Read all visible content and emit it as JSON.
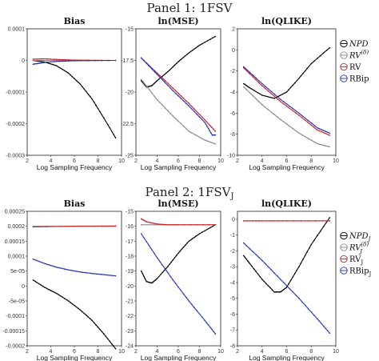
{
  "figure": {
    "panels": [
      {
        "title": "Panel 1: 1FSV"
      },
      {
        "title": "Panel 2: 1FSV",
        "title_sub": "J"
      }
    ]
  },
  "chart_data": [
    {
      "panel": 1,
      "type": "line",
      "title": "Bias",
      "xlabel": "Log Sampling Frequency",
      "xlim": [
        2,
        10
      ],
      "ylim": [
        -0.0003,
        0.0001
      ],
      "x_ticks": [
        2,
        4,
        6,
        8,
        10
      ],
      "y_ticks": [
        0.0001,
        0,
        -0.0001,
        -0.0002,
        -0.0003
      ],
      "y_tick_labels": [
        "0.0001",
        "0",
        "-0.0001",
        "-0.0002",
        "-0.0003"
      ],
      "series": [
        {
          "name": "NPD",
          "color": "#000000",
          "x": [
            2.5,
            3.5,
            4.5,
            5.5,
            6.5,
            7.5,
            8.5,
            9.5
          ],
          "y": [
            0,
            -5e-06,
            -1.7e-05,
            -4e-05,
            -7.5e-05,
            -0.000122,
            -0.000182,
            -0.000245
          ]
        },
        {
          "name": "RV(δ)",
          "color": "#888888",
          "x": [
            2.5,
            9.5
          ],
          "y": [
            0,
            0
          ]
        },
        {
          "name": "RV",
          "color": "#cc2222",
          "x": [
            2.5,
            3.5,
            4.5,
            6,
            9.5
          ],
          "y": [
            4e-06,
            5e-06,
            3e-06,
            1e-06,
            0
          ]
        },
        {
          "name": "RBip",
          "color": "#2233bb",
          "x": [
            2.5,
            3,
            3.5,
            4.5,
            6,
            9.5
          ],
          "y": [
            -1.2e-05,
            -9e-06,
            -6e-06,
            -3e-06,
            -1e-06,
            0
          ]
        }
      ]
    },
    {
      "panel": 1,
      "type": "line",
      "title": "ln(MSE)",
      "xlabel": "Log Sampling Frequency",
      "xlim": [
        2,
        10
      ],
      "ylim": [
        -25,
        -15
      ],
      "x_ticks": [
        2,
        4,
        6,
        8,
        10
      ],
      "y_ticks": [
        -15,
        -17.5,
        -20,
        -22.5,
        -25
      ],
      "y_tick_labels": [
        "-15",
        "-17.5",
        "-20",
        "-22.5",
        "-25"
      ],
      "series": [
        {
          "name": "NPD",
          "color": "#000000",
          "x": [
            2.5,
            3,
            3.5,
            4,
            5,
            6,
            7,
            8,
            9.5
          ],
          "y": [
            -19.1,
            -19.6,
            -19.5,
            -19.1,
            -18.4,
            -17.6,
            -16.9,
            -16.3,
            -15.6
          ]
        },
        {
          "name": "RV(δ)",
          "color": "#888888",
          "x": [
            2.5,
            4,
            5.5,
            7,
            8.5,
            9.5
          ],
          "y": [
            -19.0,
            -20.6,
            -21.9,
            -23.1,
            -23.8,
            -24.1
          ]
        },
        {
          "name": "RV",
          "color": "#cc2222",
          "x": [
            2.5,
            4,
            5.5,
            7,
            8.5,
            9.5
          ],
          "y": [
            -17.3,
            -18.5,
            -19.7,
            -20.9,
            -22.2,
            -23.1
          ]
        },
        {
          "name": "RBip",
          "color": "#2233bb",
          "x": [
            2.5,
            4,
            5.5,
            7,
            8.5,
            9.2,
            9.5
          ],
          "y": [
            -17.3,
            -18.6,
            -19.9,
            -21.1,
            -22.4,
            -23.4,
            -23.4
          ]
        }
      ]
    },
    {
      "panel": 1,
      "type": "line",
      "title": "ln(QLIKE)",
      "xlabel": "Log Sampling Frequency",
      "xlim": [
        2,
        10
      ],
      "ylim": [
        -10,
        2
      ],
      "x_ticks": [
        2,
        4,
        6,
        8,
        10
      ],
      "y_ticks": [
        2,
        0,
        -2,
        -4,
        -6,
        -8,
        -10
      ],
      "y_tick_labels": [
        "2",
        "0",
        "-2",
        "-4",
        "-6",
        "-8",
        "-10"
      ],
      "series": [
        {
          "name": "NPD",
          "color": "#000000",
          "x": [
            2.5,
            3,
            4,
            5,
            6,
            7,
            8,
            9.5
          ],
          "y": [
            -3.2,
            -3.6,
            -4.3,
            -4.6,
            -4.0,
            -2.7,
            -1.3,
            0.2
          ]
        },
        {
          "name": "RV(δ)",
          "color": "#888888",
          "x": [
            2.5,
            4,
            5.5,
            7,
            8.5,
            9.5
          ],
          "y": [
            -3.5,
            -5.2,
            -6.6,
            -7.9,
            -8.9,
            -9.2
          ]
        },
        {
          "name": "RV",
          "color": "#cc2222",
          "x": [
            2.5,
            4,
            5.5,
            7,
            8.5,
            9.5
          ],
          "y": [
            -1.7,
            -3.4,
            -4.9,
            -6.2,
            -7.6,
            -8.1
          ]
        },
        {
          "name": "RBip",
          "color": "#2233bb",
          "x": [
            2.5,
            4,
            5.5,
            7,
            8.5,
            9.5
          ],
          "y": [
            -1.6,
            -3.2,
            -4.7,
            -6.0,
            -7.4,
            -7.9
          ]
        }
      ]
    },
    {
      "panel": 2,
      "type": "line",
      "title": "Bias",
      "xlabel": "Log Sampling Frequency",
      "xlim": [
        2,
        10
      ],
      "ylim": [
        -0.0002,
        0.00025
      ],
      "x_ticks": [
        2,
        4,
        6,
        8,
        10
      ],
      "y_ticks": [
        0.00025,
        0.0002,
        0.00015,
        0.0001,
        5e-05,
        0,
        -5e-05,
        -0.0001,
        -0.00015,
        -0.0002
      ],
      "y_tick_labels": [
        "0.00025",
        "0.0002",
        "0.00015",
        "0.0001",
        "5e-05",
        "0",
        "-5e-05",
        "-0.0001",
        "-0.00015",
        "-0.0002"
      ],
      "series": [
        {
          "name": "NPD_J",
          "color": "#000000",
          "x": [
            2.5,
            3.5,
            4.5,
            5.5,
            6.5,
            7.5,
            8.5,
            9.5
          ],
          "y": [
            2e-05,
            -5e-06,
            -2.5e-05,
            -5e-05,
            -8e-05,
            -0.000115,
            -0.00016,
            -0.00021
          ]
        },
        {
          "name": "RV_J(δ)",
          "color": "#888888",
          "x": [
            2.5,
            9.5
          ],
          "y": [
            0.0002,
            0.0002
          ]
        },
        {
          "name": "RV_J",
          "color": "#cc2222",
          "x": [
            2.5,
            6,
            9.5
          ],
          "y": [
            0.000198,
            0.0002,
            0.000201
          ]
        },
        {
          "name": "RBip_J",
          "color": "#2233bb",
          "x": [
            2.5,
            3.5,
            4.5,
            5.5,
            6.5,
            7.5,
            8.5,
            9.5
          ],
          "y": [
            9e-05,
            7.5e-05,
            6.3e-05,
            5.4e-05,
            4.7e-05,
            4.2e-05,
            3.8e-05,
            3.4e-05
          ]
        }
      ]
    },
    {
      "panel": 2,
      "type": "line",
      "title": "ln(MSE)",
      "xlabel": "Log Sampling Frequency",
      "xlim": [
        2,
        10
      ],
      "ylim": [
        -24,
        -15
      ],
      "x_ticks": [
        2,
        4,
        6,
        8,
        10
      ],
      "y_ticks": [
        -15,
        -16,
        -17,
        -18,
        -19,
        -20,
        -21,
        -22,
        -23,
        -24
      ],
      "y_tick_labels": [
        "-15",
        "-16",
        "-17",
        "-18",
        "-19",
        "-20",
        "-21",
        "-22",
        "-23",
        "-24"
      ],
      "series": [
        {
          "name": "NPD_J",
          "color": "#000000",
          "x": [
            2.5,
            3,
            3.5,
            4,
            5,
            6,
            7,
            8,
            9.5
          ],
          "y": [
            -19.0,
            -19.7,
            -19.8,
            -19.5,
            -18.7,
            -17.8,
            -17.0,
            -16.5,
            -15.9
          ]
        },
        {
          "name": "RV_J(δ)",
          "color": "#888888",
          "x": [
            2.5,
            9.5
          ],
          "y": [
            -15.9,
            -15.9
          ]
        },
        {
          "name": "RV_J",
          "color": "#cc2222",
          "x": [
            2.5,
            3,
            4,
            5,
            6,
            9.5
          ],
          "y": [
            -15.5,
            -15.7,
            -15.85,
            -15.9,
            -15.9,
            -15.9
          ]
        },
        {
          "name": "RBip_J",
          "color": "#2233bb",
          "x": [
            2.5,
            4,
            5.5,
            7,
            8.5,
            9.5
          ],
          "y": [
            -16.5,
            -18.1,
            -19.6,
            -21.0,
            -22.3,
            -23.2
          ]
        }
      ]
    },
    {
      "panel": 2,
      "type": "line",
      "title": "ln(QLIKE)",
      "xlabel": "Log Sampling Frequency",
      "xlim": [
        2,
        10
      ],
      "ylim": [
        -8,
        0.5
      ],
      "x_ticks": [
        2,
        4,
        6,
        8,
        10
      ],
      "y_ticks": [
        0,
        -1,
        -2,
        -3,
        -4,
        -5,
        -6,
        -7,
        -8
      ],
      "y_tick_labels": [
        "0",
        "-1",
        "-2",
        "-3",
        "-4",
        "-5",
        "-6",
        "-7",
        "-8"
      ],
      "series": [
        {
          "name": "NPD_J",
          "color": "#000000",
          "x": [
            2.5,
            3,
            4,
            5,
            5.5,
            6,
            7,
            8,
            9.5
          ],
          "y": [
            -2.3,
            -2.8,
            -3.8,
            -4.6,
            -4.6,
            -4.3,
            -3.0,
            -1.6,
            0.1
          ]
        },
        {
          "name": "RV_J(δ)",
          "color": "#888888",
          "x": [
            2.5,
            9.5
          ],
          "y": [
            -0.1,
            -0.1
          ]
        },
        {
          "name": "RV_J",
          "color": "#cc2222",
          "x": [
            2.5,
            4,
            6,
            9.5
          ],
          "y": [
            -0.1,
            -0.1,
            -0.1,
            -0.1
          ]
        },
        {
          "name": "RBip_J",
          "color": "#2233bb",
          "x": [
            2.5,
            4,
            5.5,
            7,
            8.5,
            9.5
          ],
          "y": [
            -1.5,
            -2.6,
            -3.8,
            -5.0,
            -6.3,
            -7.2
          ]
        }
      ]
    }
  ],
  "legends": [
    {
      "panel": 1,
      "items": [
        {
          "label": "NPD",
          "sup": "",
          "sub": "",
          "color": "#000000",
          "italic": true
        },
        {
          "label": "RV",
          "sup": "(δ)",
          "sub": "",
          "color": "#888888",
          "italic": true
        },
        {
          "label": "RV",
          "sup": "",
          "sub": "",
          "color": "#cc2222",
          "italic": false
        },
        {
          "label": "RBip",
          "sup": "",
          "sub": "",
          "color": "#2233bb",
          "italic": false
        }
      ]
    },
    {
      "panel": 2,
      "items": [
        {
          "label": "NPD",
          "sup": "",
          "sub": "J",
          "color": "#000000",
          "italic": true
        },
        {
          "label": "RV",
          "sup": "(δ)",
          "sub": "J",
          "color": "#888888",
          "italic": true
        },
        {
          "label": "RV",
          "sup": "",
          "sub": "J",
          "color": "#cc2222",
          "italic": false
        },
        {
          "label": "RBip",
          "sup": "",
          "sub": "J",
          "color": "#2233bb",
          "italic": false
        }
      ]
    }
  ]
}
